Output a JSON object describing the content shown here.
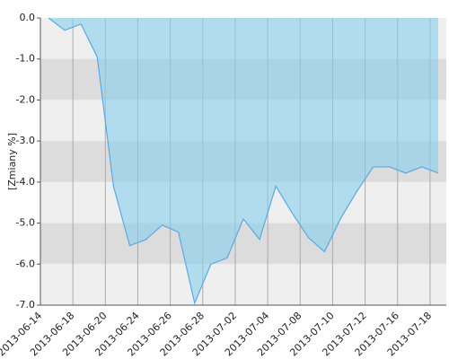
{
  "chart_data": {
    "type": "area",
    "y_label": "[Zmiany %]",
    "categories": [
      "2013-06-14",
      null,
      "2013-06-18",
      null,
      "2013-06-20",
      null,
      "2013-06-24",
      null,
      "2013-06-26",
      null,
      "2013-06-28",
      null,
      "2013-07-02",
      null,
      "2013-07-04",
      null,
      "2013-07-08",
      null,
      "2013-07-10",
      null,
      "2013-07-12",
      null,
      "2013-07-16",
      null,
      "2013-07-18"
    ],
    "values": [
      0.0,
      -0.3,
      -0.15,
      -0.95,
      -4.1,
      -5.55,
      -5.4,
      -5.05,
      -5.22,
      -6.95,
      -6.0,
      -5.85,
      -4.9,
      -5.4,
      -4.1,
      -4.75,
      -5.35,
      -5.7,
      -4.88,
      -4.22,
      -3.63,
      -3.63,
      -3.78,
      -3.63,
      -3.78
    ],
    "color": "#5aa8e6",
    "fill": "rgba(135,206,235,0.6)",
    "ylim": [
      -7,
      0
    ],
    "yticks": [
      {
        "value": 0,
        "label": "0.0"
      },
      {
        "value": -1,
        "label": "-1.0"
      },
      {
        "value": -2,
        "label": "-2.0"
      },
      {
        "value": -3,
        "label": "-3.0"
      },
      {
        "value": -4,
        "label": "-4.0"
      },
      {
        "value": -5,
        "label": "-5.0"
      },
      {
        "value": -6,
        "label": "-6.0"
      },
      {
        "value": -7,
        "label": "-7.0"
      }
    ],
    "grid": true
  }
}
